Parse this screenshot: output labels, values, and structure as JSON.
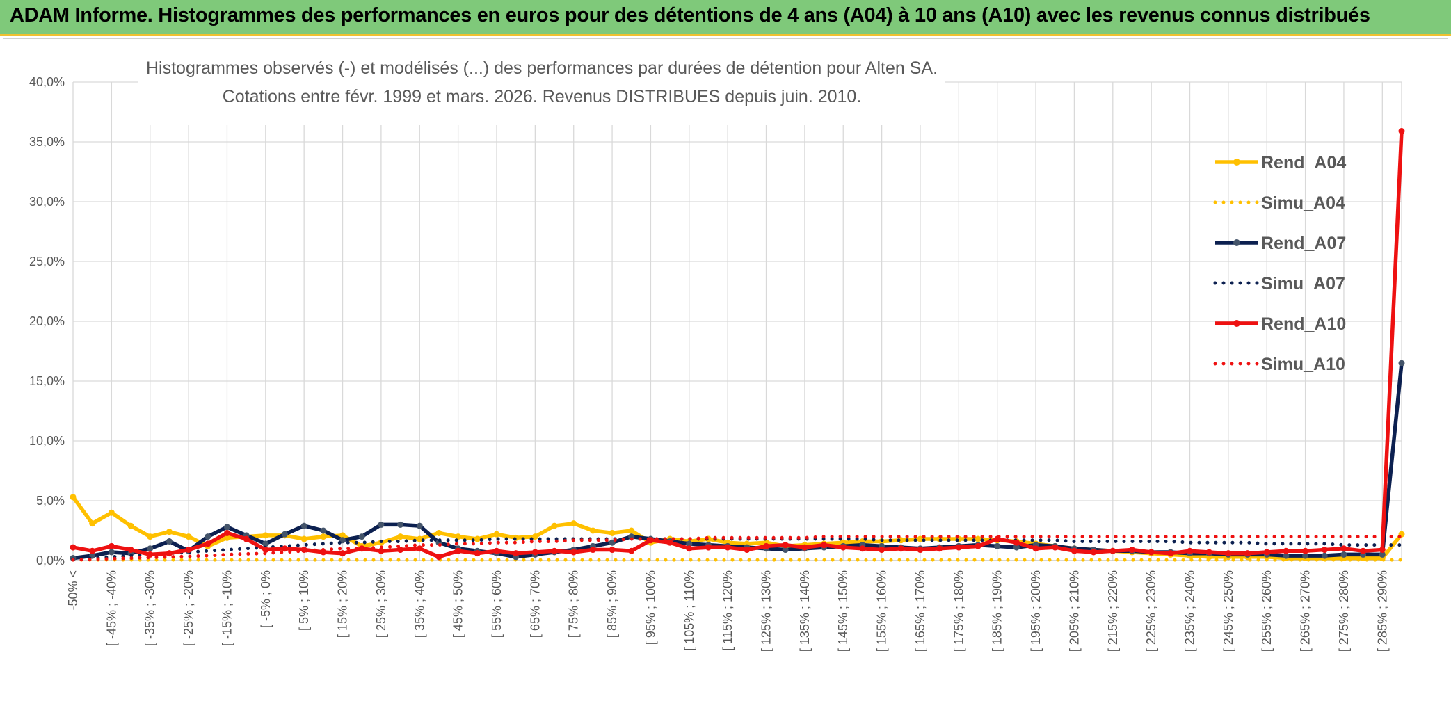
{
  "banner": {
    "title": "ADAM Informe. Histogrammes des performances en euros pour des détentions de 4 ans (A04) à 10 ans (A10) avec les revenus connus distribués"
  },
  "chart_data": {
    "type": "line",
    "title_lines": [
      "Histogrammes observés (-) et modélisés (...) des performances par durées de détention pour Alten SA.",
      "Cotations entre févr. 1999 et mars. 2026. Revenus DISTRIBUES depuis juin. 2010."
    ],
    "ylim": [
      0,
      40
    ],
    "y_ticks": [
      "0,0%",
      "5,0%",
      "10,0%",
      "15,0%",
      "20,0%",
      "25,0%",
      "30,0%",
      "35,0%",
      "40,0%"
    ],
    "x_tick_labels": [
      "-50% <",
      "[ -45% ; -40%",
      "[ -35% ; -30%",
      "[ -25% ; -20%",
      "[ -15% ; -10%",
      "[ -5% ; 0%",
      "[ 5% ; 10%",
      "[ 15% ; 20%",
      "[ 25% ; 30%",
      "[ 35% ; 40%",
      "[ 45% ; 50%",
      "[ 55% ; 60%",
      "[ 65% ; 70%",
      "[ 75% ; 80%",
      "[ 85% ; 90%",
      "[ 95% ; 100%",
      "[ 105% ; 110%",
      "[ 115% ; 120%",
      "[ 125% ; 130%",
      "[ 135% ; 140%",
      "[ 145% ; 150%",
      "[ 155% ; 160%",
      "[ 165% ; 170%",
      "[ 175% ; 180%",
      "[ 185% ; 190%",
      "[ 195% ; 200%",
      "[ 205% ; 210%",
      "[ 215% ; 220%",
      "[ 225% ; 230%",
      "[ 235% ; 240%",
      "[ 245% ; 250%",
      "[ 255% ; 260%",
      "[ 265% ; 270%",
      "[ 275% ; 280%",
      "[ 285% ; 290%"
    ],
    "n_points": 70,
    "series": [
      {
        "name": "Rend_A04",
        "color": "#ffc000",
        "style": "solid",
        "values": [
          5.3,
          3.1,
          4.0,
          2.9,
          2.0,
          2.4,
          2.0,
          1.2,
          1.9,
          2.0,
          2.1,
          2.1,
          1.8,
          2.0,
          2.1,
          1.2,
          1.5,
          2.0,
          1.8,
          2.3,
          2.0,
          1.8,
          2.2,
          1.9,
          2.0,
          2.9,
          3.1,
          2.5,
          2.3,
          2.5,
          1.5,
          1.8,
          1.6,
          1.8,
          1.5,
          1.4,
          1.5,
          1.2,
          1.3,
          1.4,
          1.5,
          1.6,
          1.6,
          1.7,
          1.8,
          1.8,
          1.8,
          1.8,
          1.7,
          1.6,
          1.4,
          1.2,
          1.0,
          0.9,
          0.8,
          0.7,
          0.6,
          0.5,
          0.4,
          0.3,
          0.3,
          0.3,
          0.3,
          0.2,
          0.2,
          0.2,
          0.2,
          0.2,
          0.2,
          2.2
        ]
      },
      {
        "name": "Simu_A04",
        "color": "#ffc000",
        "style": "dotted",
        "values": [
          0.05,
          0.05,
          0.05,
          0.05,
          0.05,
          0.05,
          0.05,
          0.05,
          0.05,
          0.05,
          0.05,
          0.05,
          0.05,
          0.05,
          0.05,
          0.05,
          0.05,
          0.05,
          0.05,
          0.05,
          0.05,
          0.05,
          0.05,
          0.05,
          0.05,
          0.05,
          0.05,
          0.05,
          0.05,
          0.05,
          0.05,
          0.05,
          0.05,
          0.05,
          0.05,
          0.05,
          0.05,
          0.05,
          0.05,
          0.05,
          0.05,
          0.05,
          0.05,
          0.05,
          0.05,
          0.05,
          0.05,
          0.05,
          0.05,
          0.05,
          0.05,
          0.05,
          0.05,
          0.05,
          0.05,
          0.05,
          0.05,
          0.05,
          0.05,
          0.05,
          0.05,
          0.05,
          0.05,
          0.05,
          0.05,
          0.05,
          0.05,
          0.05,
          0.05,
          0.05
        ]
      },
      {
        "name": "Rend_A07",
        "color": "#0c2050",
        "style": "solid",
        "values": [
          0.2,
          0.4,
          0.7,
          0.6,
          1.0,
          1.6,
          0.8,
          2.0,
          2.8,
          2.1,
          1.4,
          2.2,
          2.9,
          2.5,
          1.7,
          2.0,
          3.0,
          3.0,
          2.9,
          1.5,
          1.0,
          0.8,
          0.6,
          0.3,
          0.5,
          0.7,
          0.9,
          1.2,
          1.5,
          2.0,
          1.8,
          1.6,
          1.4,
          1.3,
          1.2,
          1.1,
          1.0,
          0.9,
          1.0,
          1.1,
          1.2,
          1.3,
          1.2,
          1.1,
          1.0,
          1.1,
          1.2,
          1.3,
          1.2,
          1.1,
          1.3,
          1.2,
          1.0,
          0.9,
          0.8,
          0.8,
          0.7,
          0.7,
          0.6,
          0.6,
          0.5,
          0.5,
          0.5,
          0.4,
          0.4,
          0.4,
          0.5,
          0.5,
          0.5,
          16.5
        ]
      },
      {
        "name": "Simu_A07",
        "color": "#0c2050",
        "style": "dotted",
        "values": [
          0.1,
          0.2,
          0.3,
          0.4,
          0.5,
          0.6,
          0.7,
          0.8,
          0.9,
          1.0,
          1.1,
          1.2,
          1.3,
          1.4,
          1.5,
          1.5,
          1.6,
          1.6,
          1.7,
          1.7,
          1.7,
          1.7,
          1.8,
          1.8,
          1.8,
          1.8,
          1.8,
          1.8,
          1.8,
          1.8,
          1.8,
          1.8,
          1.8,
          1.8,
          1.8,
          1.8,
          1.8,
          1.8,
          1.8,
          1.8,
          1.8,
          1.8,
          1.7,
          1.7,
          1.7,
          1.7,
          1.7,
          1.7,
          1.7,
          1.7,
          1.7,
          1.7,
          1.6,
          1.6,
          1.6,
          1.6,
          1.6,
          1.6,
          1.5,
          1.5,
          1.5,
          1.5,
          1.4,
          1.4,
          1.4,
          1.4,
          1.3,
          1.3,
          1.3,
          1.3
        ]
      },
      {
        "name": "Rend_A10",
        "color": "#ee1111",
        "style": "solid",
        "values": [
          1.1,
          0.8,
          1.2,
          0.9,
          0.5,
          0.6,
          0.9,
          1.4,
          2.3,
          1.8,
          0.9,
          1.0,
          0.9,
          0.7,
          0.6,
          1.0,
          0.8,
          0.9,
          1.0,
          0.3,
          0.8,
          0.6,
          0.8,
          0.6,
          0.7,
          0.8,
          0.7,
          0.9,
          0.9,
          0.8,
          1.7,
          1.5,
          1.0,
          1.1,
          1.1,
          0.9,
          1.2,
          1.3,
          1.1,
          1.3,
          1.1,
          1.0,
          0.9,
          1.0,
          0.9,
          1.0,
          1.1,
          1.2,
          1.8,
          1.5,
          1.0,
          1.1,
          0.8,
          0.7,
          0.8,
          0.9,
          0.7,
          0.6,
          0.8,
          0.7,
          0.6,
          0.6,
          0.7,
          0.8,
          0.8,
          0.9,
          1.0,
          0.8,
          0.9,
          35.9
        ]
      },
      {
        "name": "Simu_A10",
        "color": "#ee1111",
        "style": "dotted",
        "values": [
          0.05,
          0.1,
          0.15,
          0.2,
          0.25,
          0.3,
          0.35,
          0.4,
          0.5,
          0.55,
          0.6,
          0.7,
          0.8,
          0.9,
          1.0,
          1.0,
          1.1,
          1.2,
          1.3,
          1.3,
          1.4,
          1.4,
          1.5,
          1.5,
          1.6,
          1.6,
          1.7,
          1.7,
          1.7,
          1.8,
          1.8,
          1.8,
          1.8,
          1.9,
          1.9,
          1.9,
          1.9,
          1.9,
          1.9,
          2.0,
          2.0,
          2.0,
          2.0,
          2.0,
          2.0,
          2.0,
          2.0,
          2.0,
          2.0,
          2.0,
          2.0,
          2.0,
          2.0,
          2.0,
          2.0,
          2.0,
          2.0,
          2.0,
          2.0,
          2.0,
          2.0,
          2.0,
          2.0,
          2.0,
          2.0,
          2.0,
          2.0,
          2.0,
          2.0,
          2.0
        ]
      }
    ],
    "legend": [
      "Rend_A04",
      "Simu_A04",
      "Rend_A07",
      "Simu_A07",
      "Rend_A10",
      "Simu_A10"
    ]
  }
}
